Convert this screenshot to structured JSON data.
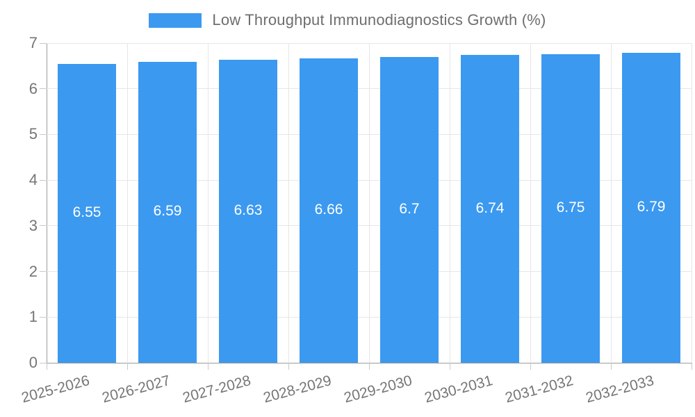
{
  "legend": {
    "label": "Low Throughput Immunodiagnostics Growth (%)"
  },
  "chart_data": {
    "type": "bar",
    "title": "Low Throughput Immunodiagnostics Growth (%)",
    "categories": [
      "2025-2026",
      "2026-2027",
      "2027-2028",
      "2028-2029",
      "2029-2030",
      "2030-2031",
      "2031-2032",
      "2032-2033"
    ],
    "values": [
      6.55,
      6.59,
      6.63,
      6.66,
      6.7,
      6.74,
      6.75,
      6.79
    ],
    "value_labels": [
      "6.55",
      "6.59",
      "6.63",
      "6.66",
      "6.7",
      "6.74",
      "6.75",
      "6.79"
    ],
    "xlabel": "",
    "ylabel": "",
    "ylim": [
      0,
      7
    ],
    "yticks": [
      0,
      1,
      2,
      3,
      4,
      5,
      6,
      7
    ],
    "grid": true,
    "legend_position": "top-center",
    "bar_color": "#3B99F0",
    "value_label_color": "#ffffff",
    "axis_color": "#9b9b9b",
    "gridline_color": "#e6e6e6",
    "tick_label_color": "#757575",
    "legend_text_color": "#6e6e6e"
  }
}
